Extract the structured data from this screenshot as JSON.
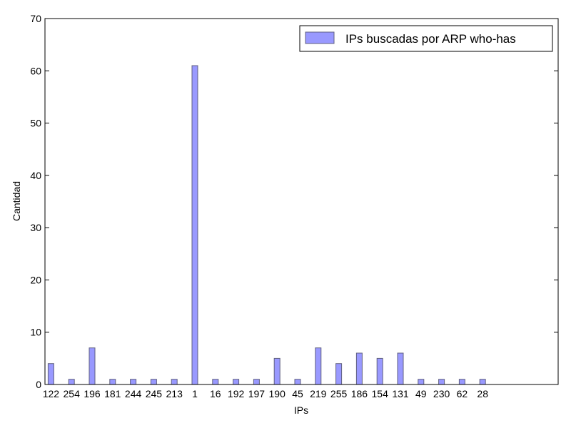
{
  "chart_data": {
    "type": "bar",
    "categories": [
      "122",
      "254",
      "196",
      "181",
      "244",
      "245",
      "213",
      "1",
      "16",
      "192",
      "197",
      "190",
      "45",
      "219",
      "255",
      "186",
      "154",
      "131",
      "49",
      "230",
      "62",
      "28"
    ],
    "series": [
      {
        "name": "IPs buscadas por ARP who-has",
        "values": [
          4,
          1,
          7,
          1,
          1,
          1,
          1,
          61,
          1,
          1,
          1,
          5,
          1,
          7,
          4,
          6,
          5,
          6,
          1,
          1,
          1,
          1
        ],
        "color": "#9999ff"
      }
    ],
    "title": "",
    "xlabel": "IPs",
    "ylabel": "Cantidad",
    "ylim": [
      0,
      70
    ],
    "yticks": [
      0,
      10,
      20,
      30,
      40,
      50,
      60,
      70
    ],
    "grid": false,
    "legend_position": "top-right"
  }
}
